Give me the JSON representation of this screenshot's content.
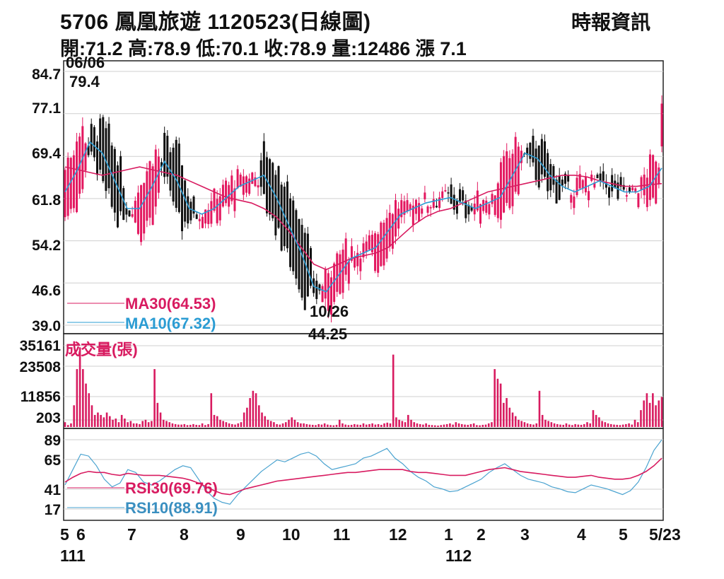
{
  "header": {
    "title": "5706  鳳凰旅遊 1120523(日線圖)",
    "source": "時報資訊",
    "stats": "開:71.2 高:78.9 低:70.1 收:78.9 量:12486 漲 7.1"
  },
  "colors": {
    "up": "#e3175f",
    "down": "#111111",
    "ma30": "#d81b60",
    "ma10": "#2b9cd3",
    "volume": "#d81b60",
    "rsi30": "#d81b60",
    "rsi10": "#4aa3d0",
    "grid": "#cfcfcf"
  },
  "chart_data": [
    {
      "type": "candlestick",
      "ylim": [
        39.0,
        84.7
      ],
      "y_ticks": [
        "84.7",
        "77.1",
        "69.4",
        "61.8",
        "54.2",
        "46.6",
        "39.0"
      ],
      "grid": true,
      "series": [
        {
          "name": "MA30(64.53)",
          "values": [
            67.5,
            67,
            66.5,
            66,
            66.5,
            67,
            67.5,
            67,
            66.5,
            66,
            65,
            64,
            63,
            62,
            61.5,
            61,
            60,
            58.5,
            56,
            53,
            50,
            49,
            50,
            51,
            51.5,
            52,
            53,
            55,
            57,
            58.5,
            59.5,
            60,
            61,
            62,
            63,
            63.5,
            64,
            64.5,
            65,
            65.5,
            66,
            66,
            65.7,
            65,
            64.5,
            64,
            64,
            64.3,
            64.5
          ]
        },
        {
          "name": "MA10(67.32)",
          "values": [
            63,
            67,
            72,
            70,
            65,
            60,
            60,
            64,
            68.5,
            65,
            60,
            59,
            60,
            62,
            64,
            65,
            66,
            62,
            57,
            52,
            46,
            45,
            48,
            51,
            52,
            53,
            56,
            59,
            60,
            61,
            61.5,
            62,
            61,
            60,
            61,
            62,
            66,
            70,
            69,
            66,
            64,
            63,
            64,
            65,
            64,
            63,
            63,
            64,
            67.3
          ]
        }
      ],
      "events": [
        {
          "date": "06/06",
          "value": "79.4"
        },
        {
          "date": "10/26",
          "value": "44.25"
        }
      ]
    },
    {
      "type": "bar",
      "title": "成交量(張)",
      "y_ticks": [
        "35161",
        "23508",
        "11856",
        "203"
      ],
      "ylim": [
        0,
        35161
      ],
      "values": [
        2000,
        800,
        1500,
        9000,
        24000,
        33000,
        24000,
        18000,
        14000,
        9000,
        5000,
        6000,
        5000,
        4000,
        6000,
        4500,
        3000,
        3500,
        2000,
        5000,
        3500,
        2000,
        2500,
        1500,
        1500,
        1200,
        2500,
        3000,
        2000,
        2500,
        24000,
        10000,
        6000,
        3000,
        2500,
        2000,
        1500,
        1200,
        1000,
        1000,
        1200,
        800,
        900,
        1200,
        900,
        800,
        1500,
        800,
        1200,
        14000,
        5000,
        4500,
        3000,
        2500,
        2000,
        1500,
        1200,
        1000,
        1500,
        2000,
        6000,
        8000,
        12000,
        15000,
        14000,
        9000,
        6000,
        4500,
        3000,
        2500,
        2000,
        1200,
        1000,
        1500,
        2000,
        3000,
        4000,
        3000,
        2000,
        1500,
        1500,
        1200,
        1000,
        900,
        800,
        1200,
        1000,
        1500,
        1000,
        800,
        700,
        900,
        3000,
        1500,
        1000,
        800,
        900,
        1200,
        1000,
        900,
        1500,
        1000,
        1200,
        1500,
        1000,
        1200,
        900,
        1500,
        1800,
        1500,
        30000,
        4000,
        3000,
        2500,
        2000,
        5000,
        3000,
        2000,
        1500,
        1200,
        1000,
        1500,
        900,
        800,
        700,
        600,
        800,
        1000,
        1200,
        1500,
        1000,
        2000,
        1500,
        1200,
        1000,
        900,
        1200,
        1500,
        800,
        700,
        900,
        1000,
        1500,
        2000,
        24000,
        20000,
        18000,
        10000,
        12000,
        8000,
        6000,
        4500,
        3000,
        2500,
        2000,
        1500,
        1200,
        1000,
        1500,
        15000,
        5000,
        3000,
        2500,
        2000,
        1500,
        1200,
        1000,
        900,
        1500,
        1000,
        800,
        1200,
        1000,
        900,
        1200,
        2000,
        1500,
        7000,
        5000,
        4000,
        2500,
        2000,
        1500,
        1200,
        1000,
        900,
        800,
        1000,
        1200,
        1500,
        1000,
        3000,
        2000,
        7000,
        11000,
        14000,
        10000,
        14000,
        9000,
        11000,
        12486
      ]
    },
    {
      "type": "line",
      "y_ticks": [
        "89",
        "65",
        "41",
        "17"
      ],
      "ylim": [
        17,
        89
      ],
      "series": [
        {
          "name": "RSI30(69.76)",
          "values": [
            45,
            50,
            54,
            56,
            55,
            55,
            53,
            52,
            54,
            53,
            52,
            52,
            52,
            51,
            50,
            49,
            47,
            44,
            40,
            36,
            33,
            32,
            35,
            38,
            40,
            42,
            44,
            46,
            47,
            48,
            49,
            50,
            51,
            52,
            53,
            54,
            55,
            55,
            56,
            57,
            58,
            58,
            58,
            58,
            56,
            55,
            55,
            54,
            53,
            52,
            52,
            52,
            54,
            56,
            58,
            59,
            60,
            58,
            56,
            55,
            54,
            53,
            52,
            51,
            50,
            50,
            51,
            52,
            50,
            49,
            48,
            48,
            49,
            52,
            56,
            62,
            69.8
          ]
        },
        {
          "name": "RSI10(88.91)",
          "values": [
            42,
            58,
            74,
            72,
            62,
            48,
            40,
            44,
            58,
            55,
            45,
            42,
            46,
            52,
            58,
            62,
            60,
            48,
            36,
            28,
            24,
            22,
            32,
            40,
            48,
            56,
            62,
            68,
            66,
            70,
            74,
            76,
            72,
            64,
            58,
            60,
            62,
            64,
            70,
            72,
            76,
            80,
            70,
            64,
            56,
            50,
            46,
            40,
            38,
            35,
            36,
            40,
            44,
            48,
            55,
            60,
            64,
            58,
            52,
            48,
            46,
            44,
            40,
            38,
            35,
            34,
            38,
            42,
            40,
            38,
            35,
            32,
            36,
            45,
            60,
            78,
            88.9
          ]
        }
      ]
    }
  ],
  "x_axis": {
    "month_labels": [
      "5",
      "6",
      "7",
      "8",
      "9",
      "10",
      "11",
      "12",
      "1",
      "2",
      "3",
      "4",
      "5",
      "5/23"
    ],
    "year_labels": [
      "111",
      "112"
    ]
  }
}
